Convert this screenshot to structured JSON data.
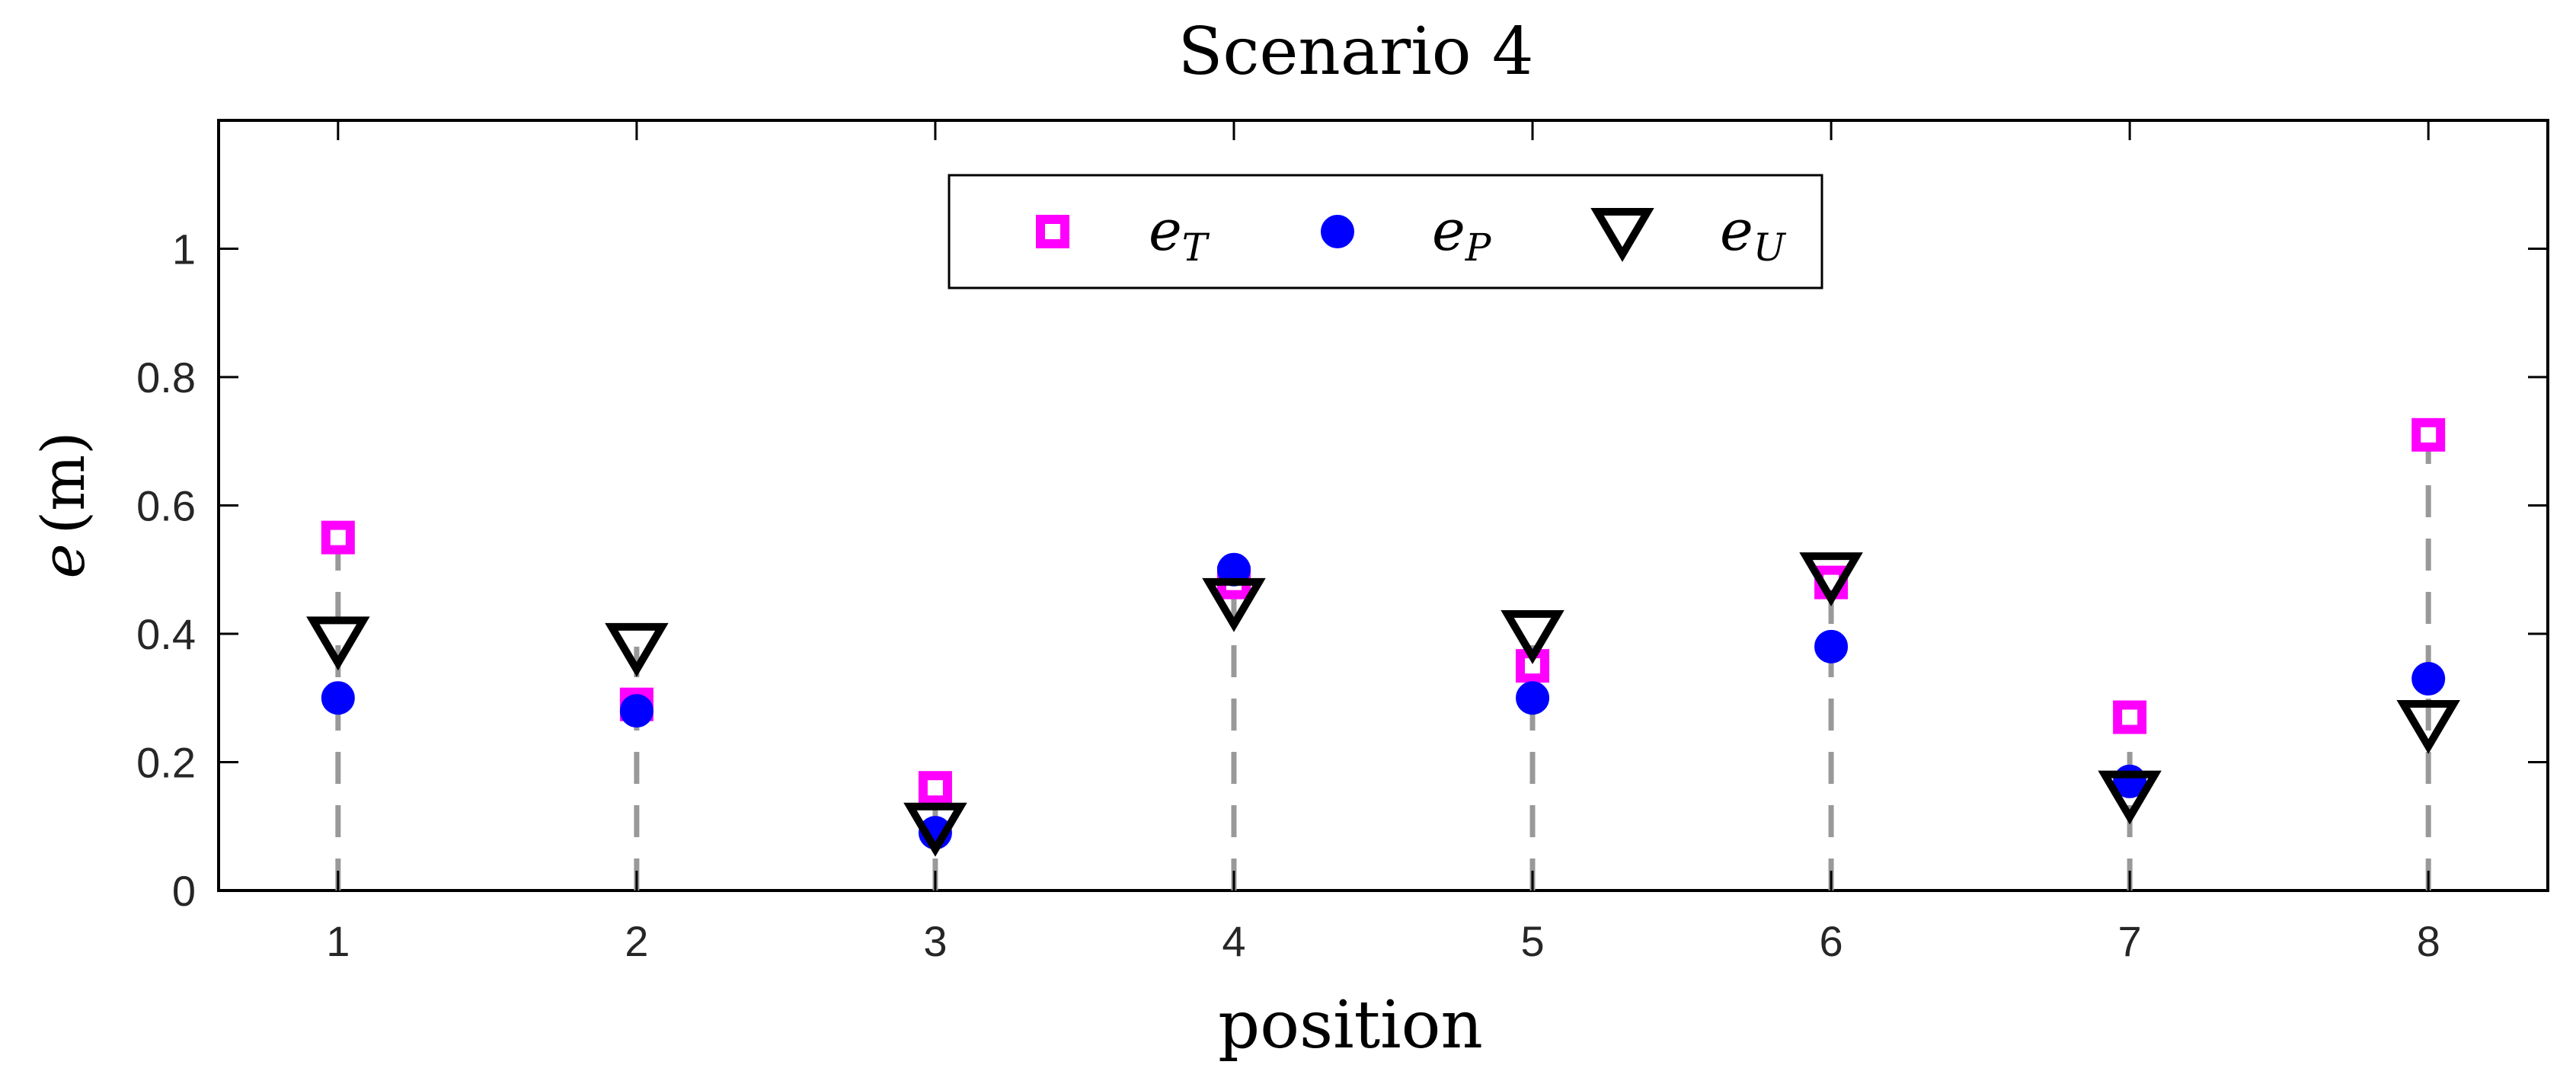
{
  "chart_data": {
    "type": "scatter",
    "title": "Scenario 4",
    "xlabel": "position",
    "ylabel": {
      "var": "e",
      "unit": "(m)"
    },
    "xlim": [
      0.6,
      8.4
    ],
    "ylim": [
      0,
      1.2
    ],
    "x_ticks": [
      "1",
      "2",
      "3",
      "4",
      "5",
      "6",
      "7",
      "8"
    ],
    "y_ticks": [
      "0",
      "0.2",
      "0.4",
      "0.6",
      "0.8",
      "1"
    ],
    "x": [
      1,
      2,
      3,
      4,
      5,
      6,
      7,
      8
    ],
    "grid": false,
    "legend_position": "top-center",
    "stems": {
      "color": "#999999",
      "style": "dashed"
    },
    "series": [
      {
        "name": "e",
        "sub": "T",
        "marker": "square",
        "color": "#ff00ff",
        "values": [
          0.55,
          0.29,
          0.16,
          0.48,
          0.35,
          0.48,
          0.27,
          0.71
        ]
      },
      {
        "name": "e",
        "sub": "P",
        "marker": "circle",
        "color": "#0000ff",
        "values": [
          0.3,
          0.28,
          0.09,
          0.5,
          0.3,
          0.38,
          0.17,
          0.33
        ]
      },
      {
        "name": "e",
        "sub": "U",
        "marker": "triangle-down",
        "color": "#000000",
        "values": [
          0.39,
          0.38,
          0.1,
          0.45,
          0.4,
          0.49,
          0.15,
          0.26
        ]
      }
    ]
  }
}
